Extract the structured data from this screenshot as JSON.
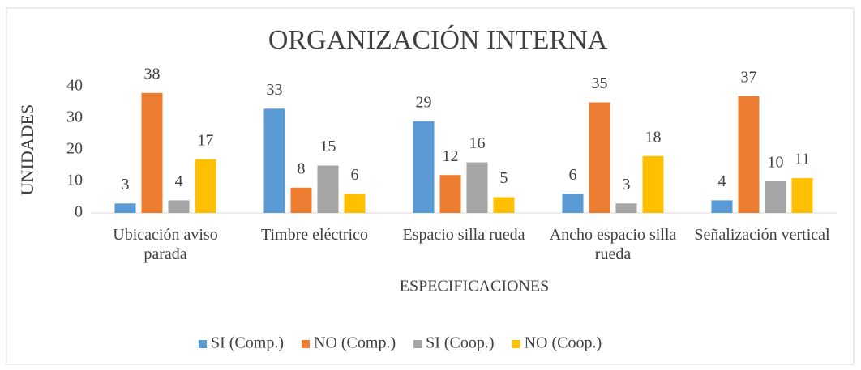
{
  "chart_data": {
    "type": "bar",
    "title": "ORGANIZACIÓN INTERNA",
    "xlabel": "ESPECIFICACIONES",
    "ylabel": "UNIDADES",
    "categories": [
      "Ubicación aviso parada",
      "Timbre eléctrico",
      "Espacio silla rueda",
      "Ancho espacio silla rueda",
      "Señalización vertical"
    ],
    "series": [
      {
        "name": "SI (Comp.)",
        "color": "#5b9bd5",
        "values": [
          3,
          33,
          29,
          6,
          4
        ]
      },
      {
        "name": "NO (Comp.)",
        "color": "#ed7d31",
        "values": [
          38,
          8,
          12,
          35,
          37
        ]
      },
      {
        "name": "SI (Coop.)",
        "color": "#a5a5a5",
        "values": [
          4,
          15,
          16,
          3,
          10
        ]
      },
      {
        "name": "NO (Coop.)",
        "color": "#ffc000",
        "values": [
          17,
          6,
          5,
          18,
          11
        ]
      }
    ],
    "ylim": [
      0,
      40
    ],
    "yticks": [
      0,
      10,
      20,
      30,
      40
    ],
    "grid": false,
    "legend": "bottom"
  }
}
